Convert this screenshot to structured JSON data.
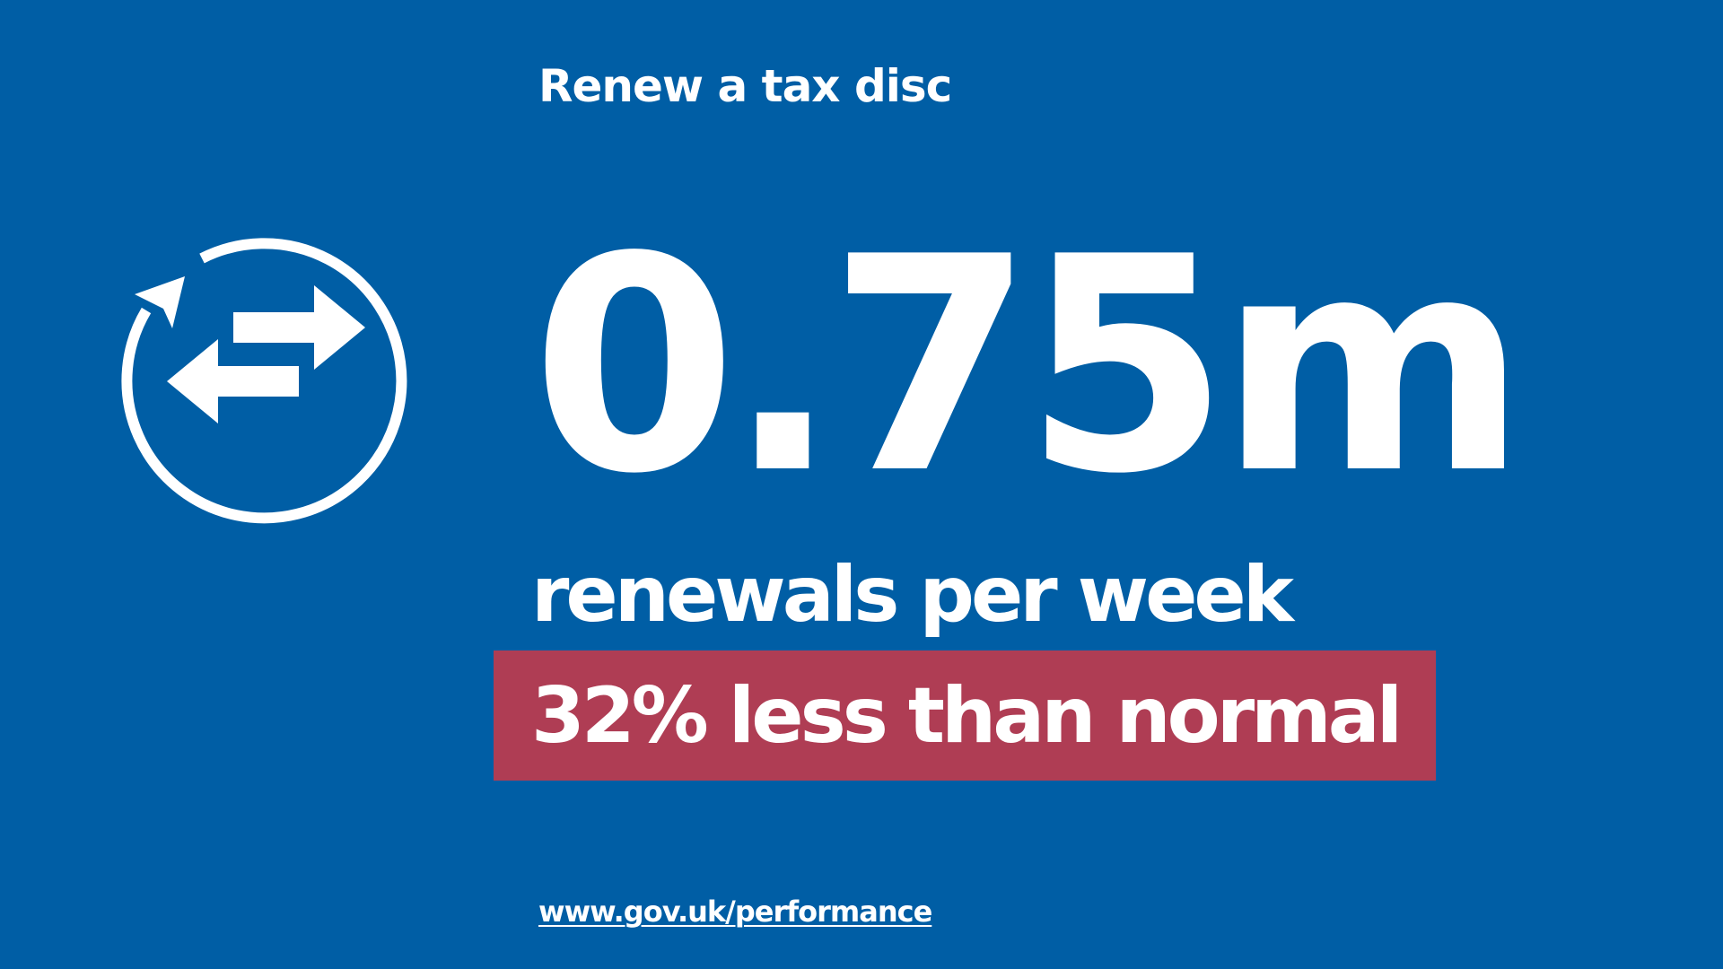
{
  "card": {
    "title": "Renew a tax disc",
    "icon": "renew-exchange-arrows-icon",
    "metric": {
      "value": "0.75m",
      "unit_label": "renewals per week"
    },
    "change": {
      "text": "32% less than normal",
      "badge_color": "#af3d54"
    },
    "footer_link": "www.gov.uk/performance"
  },
  "colors": {
    "background": "#005ea5",
    "text": "#ffffff"
  }
}
